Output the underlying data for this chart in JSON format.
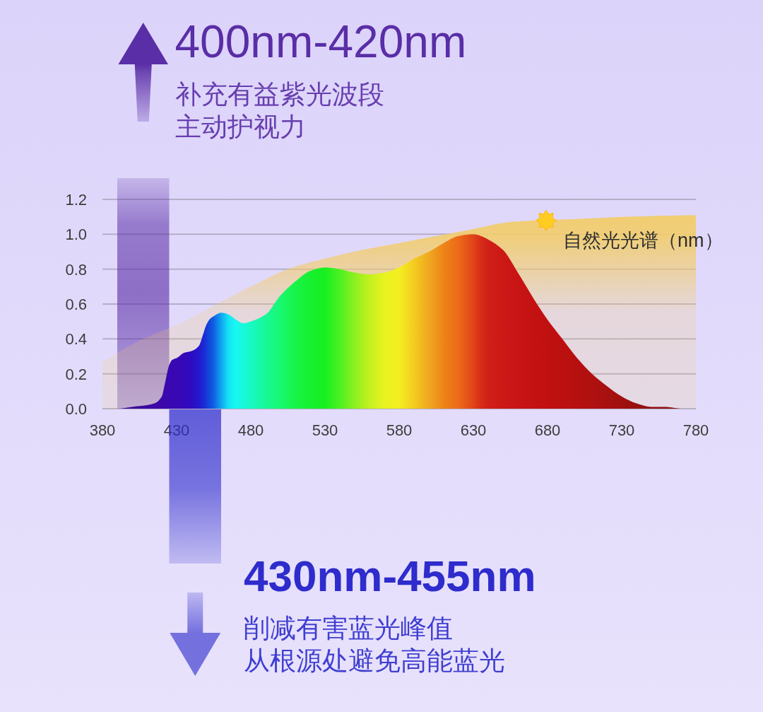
{
  "chart_data": {
    "type": "area",
    "xlim": [
      380,
      780
    ],
    "xticks": [
      380,
      430,
      480,
      530,
      580,
      630,
      680,
      730,
      780
    ],
    "ylim": [
      0,
      1.2
    ],
    "yticks": [
      {
        "value": 0,
        "label": "0.0"
      },
      0.2,
      0.4,
      0.6,
      0.8,
      {
        "value": 1,
        "label": "1.0"
      },
      1.2
    ],
    "grid": "y",
    "series": [
      {
        "name": "自然光光谱（nm）",
        "color": "#f2cd6b",
        "x": [
          380,
          405,
          430,
          455,
          480,
          505,
          530,
          555,
          580,
          605,
          630,
          655,
          705,
          730,
          780
        ],
        "values": [
          0.27,
          0.39,
          0.48,
          0.59,
          0.7,
          0.8,
          0.86,
          0.91,
          0.95,
          0.99,
          1.03,
          1.07,
          1.09,
          1.1,
          1.11
        ]
      },
      {
        "x": [
          392,
          400,
          410,
          415,
          420,
          422,
          425,
          427,
          430,
          435,
          440,
          445,
          448,
          450,
          452,
          455,
          460,
          465,
          470,
          475,
          480,
          490,
          500,
          510,
          520,
          530,
          540,
          550,
          560,
          570,
          580,
          590,
          600,
          610,
          620,
          630,
          635,
          640,
          650,
          660,
          670,
          680,
          690,
          700,
          710,
          720,
          730,
          740,
          750,
          760,
          770,
          780
        ],
        "values": [
          0,
          0.01,
          0.02,
          0.03,
          0.07,
          0.14,
          0.25,
          0.28,
          0.29,
          0.32,
          0.33,
          0.36,
          0.43,
          0.48,
          0.51,
          0.53,
          0.55,
          0.54,
          0.51,
          0.49,
          0.5,
          0.54,
          0.65,
          0.73,
          0.79,
          0.81,
          0.8,
          0.78,
          0.77,
          0.78,
          0.81,
          0.86,
          0.9,
          0.95,
          0.99,
          1.0,
          0.99,
          0.97,
          0.91,
          0.78,
          0.64,
          0.51,
          0.4,
          0.29,
          0.2,
          0.13,
          0.07,
          0.03,
          0.01,
          0.01,
          0,
          0
        ],
        "colors": [
          "#3a0890",
          "#3c0898",
          "#3d08a0",
          "#3d08a6",
          "#3c08aa",
          "#3b08ae",
          "#3a08b0",
          "#3908b2",
          "#3808b4",
          "#3408b8",
          "#2c0cc2",
          "#2418cc",
          "#1c28d4",
          "#1638d8",
          "#1248dc",
          "#1060e2",
          "#10a4f0",
          "#14e4f4",
          "#18f8f0",
          "#18f8dc",
          "#18f8c4",
          "#18f898",
          "#18f870",
          "#18f448",
          "#16f030",
          "#18f020",
          "#4cf020",
          "#8cf020",
          "#c4f020",
          "#e8f420",
          "#f4ee20",
          "#f4cc20",
          "#f0a820",
          "#ee8418",
          "#ec6a18",
          "#e04418",
          "#d82c18",
          "#d02018",
          "#cc1816",
          "#c81414",
          "#c41212",
          "#c01010",
          "#bc1010",
          "#b61010",
          "#b01010",
          "#a81010",
          "#a01010",
          "#981010",
          "#901010",
          "#8c1010",
          "#881010",
          "#801010"
        ]
      }
    ],
    "bands": [
      {
        "axis": "x",
        "from": 390,
        "to": 425,
        "label": "400nm-420nm",
        "color": "#5a2ea6"
      }
    ],
    "annotations": [
      "补充有益紫光波段",
      "主动护视力",
      "430nm-455nm",
      "削减有害蓝光峰值",
      "从根源处避免高能蓝光"
    ]
  }
}
